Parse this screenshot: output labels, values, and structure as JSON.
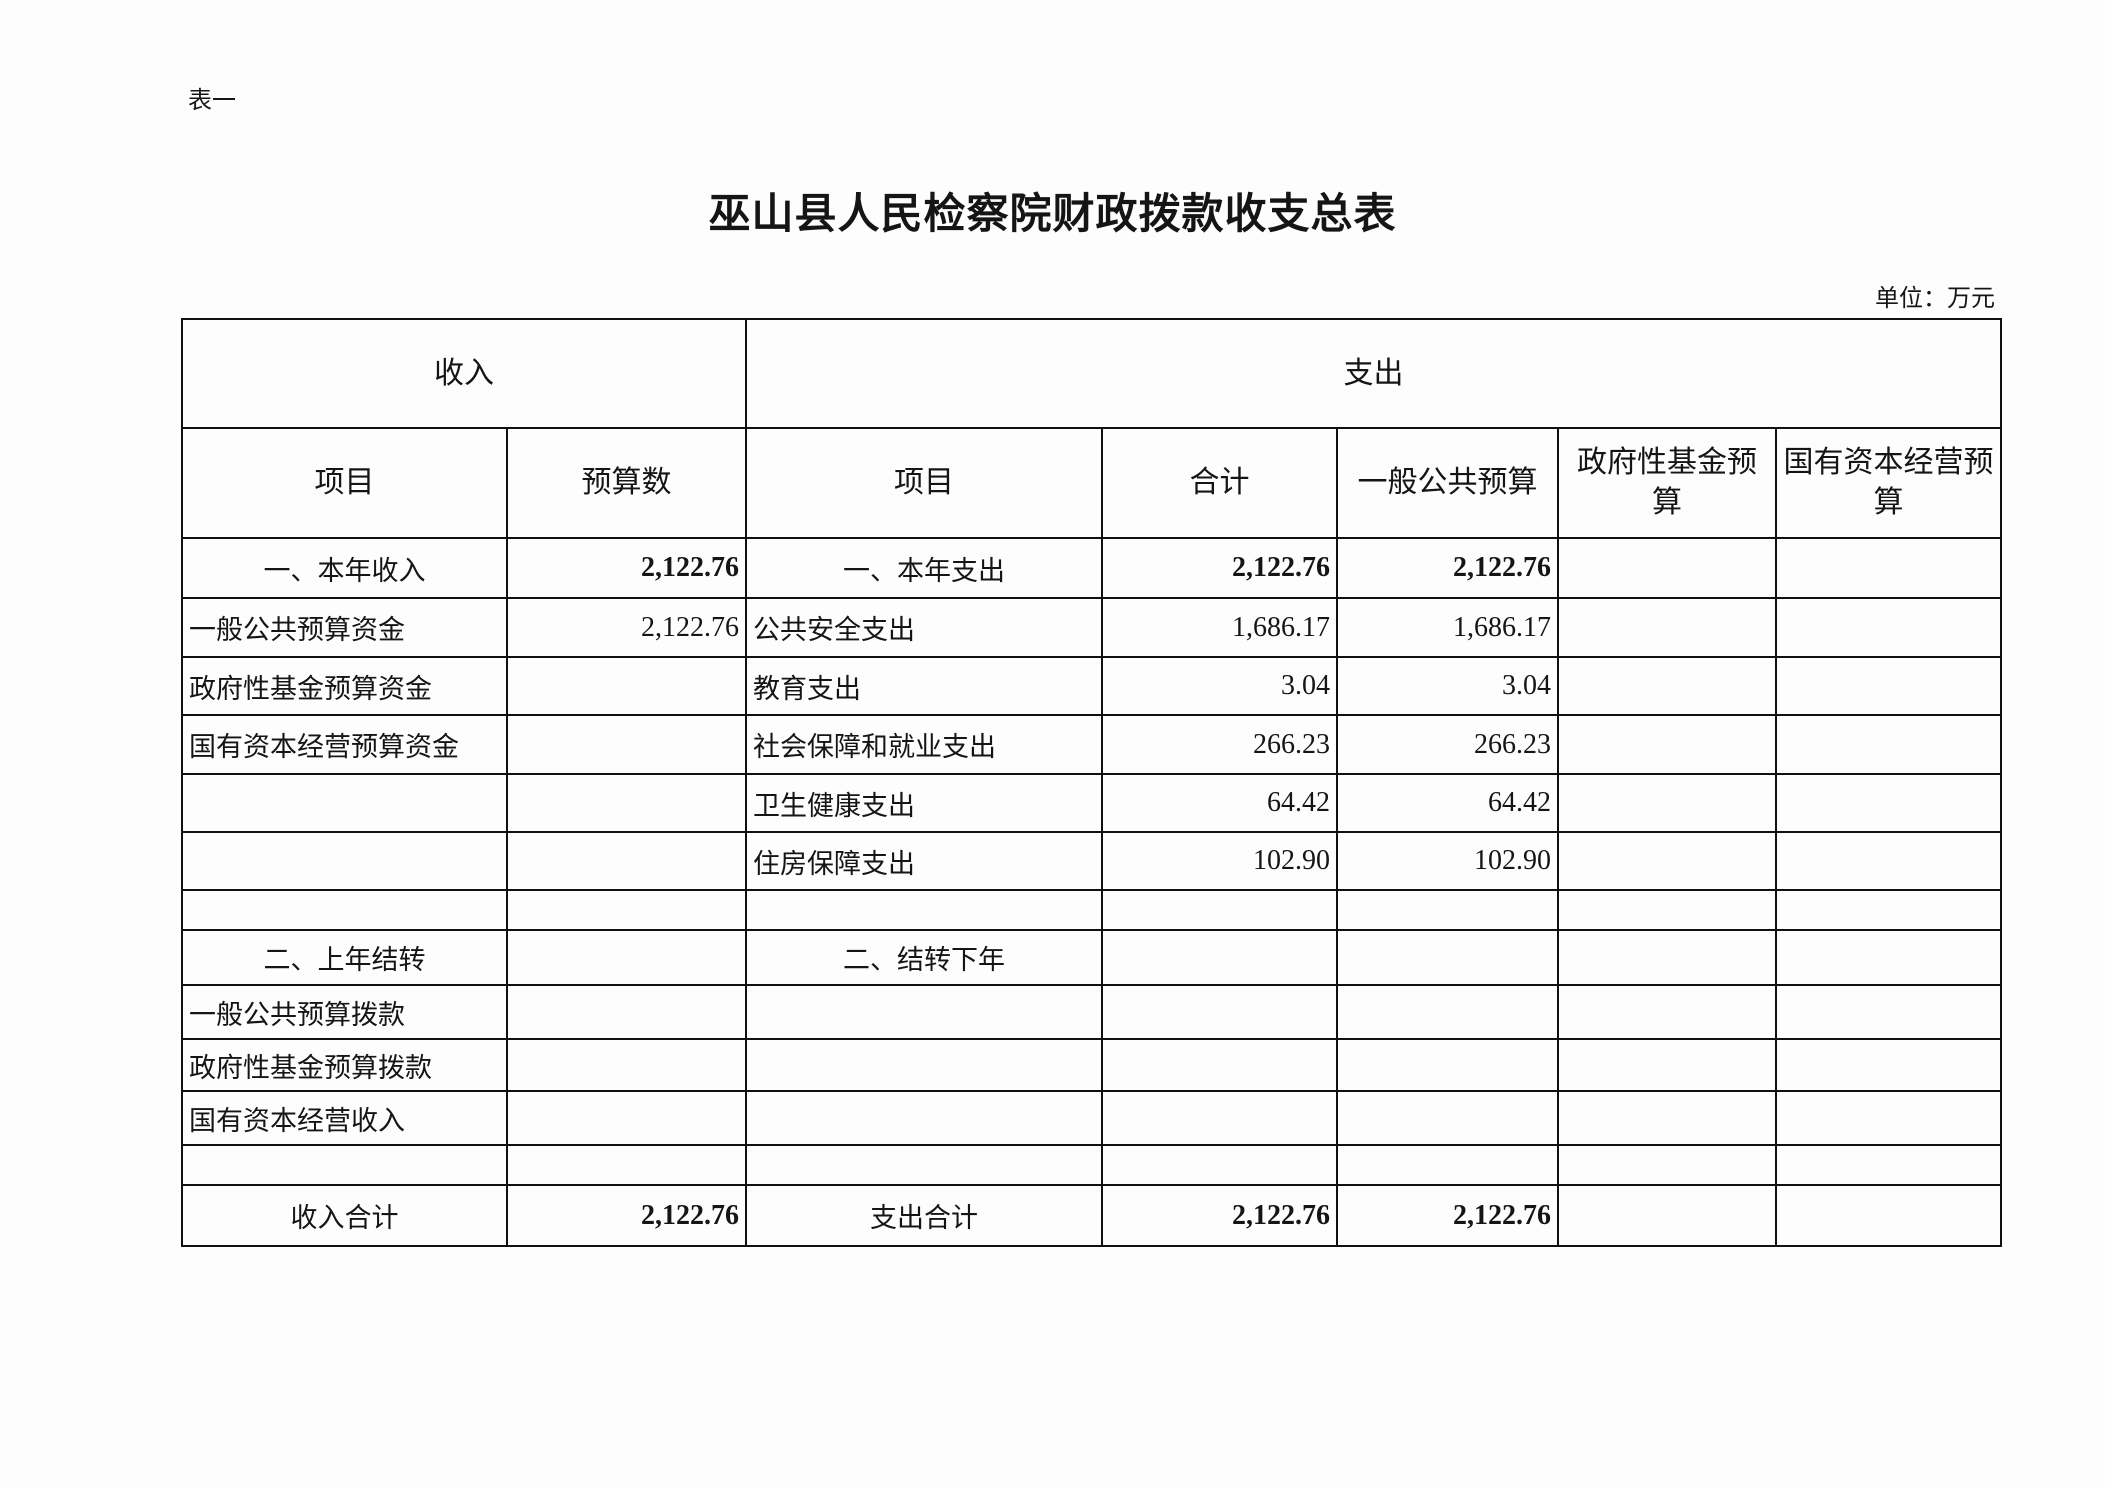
{
  "doc_label": "表一",
  "title": "巫山县人民检察院财政拨款收支总表",
  "unit": "单位：万元",
  "header": {
    "income": "收入",
    "expense": "支出",
    "columns": [
      "项目",
      "预算数",
      "项目",
      "合计",
      "一般公共预算",
      "政府性基金预算",
      "国有资本经营预算"
    ]
  },
  "rows": [
    {
      "cells": [
        "一、本年收入",
        "2,122.76",
        "一、本年支出",
        "2,122.76",
        "2,122.76",
        "",
        ""
      ],
      "bold": true,
      "center_labels": true
    },
    {
      "cells": [
        "一般公共预算资金",
        "2,122.76",
        "公共安全支出",
        "1,686.17",
        "1,686.17",
        "",
        ""
      ]
    },
    {
      "cells": [
        "政府性基金预算资金",
        "",
        "教育支出",
        "3.04",
        "3.04",
        "",
        ""
      ]
    },
    {
      "cells": [
        "国有资本经营预算资金",
        "",
        "社会保障和就业支出",
        "266.23",
        "266.23",
        "",
        ""
      ]
    },
    {
      "cells": [
        "",
        "",
        "卫生健康支出",
        "64.42",
        "64.42",
        "",
        ""
      ]
    },
    {
      "cells": [
        "",
        "",
        "住房保障支出",
        "102.90",
        "102.90",
        "",
        ""
      ]
    },
    {
      "cells": [
        "",
        "",
        "",
        "",
        "",
        "",
        ""
      ]
    },
    {
      "cells": [
        "二、上年结转",
        "",
        "二、结转下年",
        "",
        "",
        "",
        ""
      ],
      "center_labels": true
    },
    {
      "cells": [
        "一般公共预算拨款",
        "",
        "",
        "",
        "",
        "",
        ""
      ]
    },
    {
      "cells": [
        "政府性基金预算拨款",
        "",
        "",
        "",
        "",
        "",
        ""
      ]
    },
    {
      "cells": [
        "国有资本经营收入",
        "",
        "",
        "",
        "",
        "",
        ""
      ]
    },
    {
      "cells": [
        "",
        "",
        "",
        "",
        "",
        "",
        ""
      ]
    },
    {
      "cells": [
        "收入合计",
        "2,122.76",
        "支出合计",
        "2,122.76",
        "2,122.76",
        "",
        ""
      ],
      "bold": true,
      "center_labels": true
    }
  ]
}
